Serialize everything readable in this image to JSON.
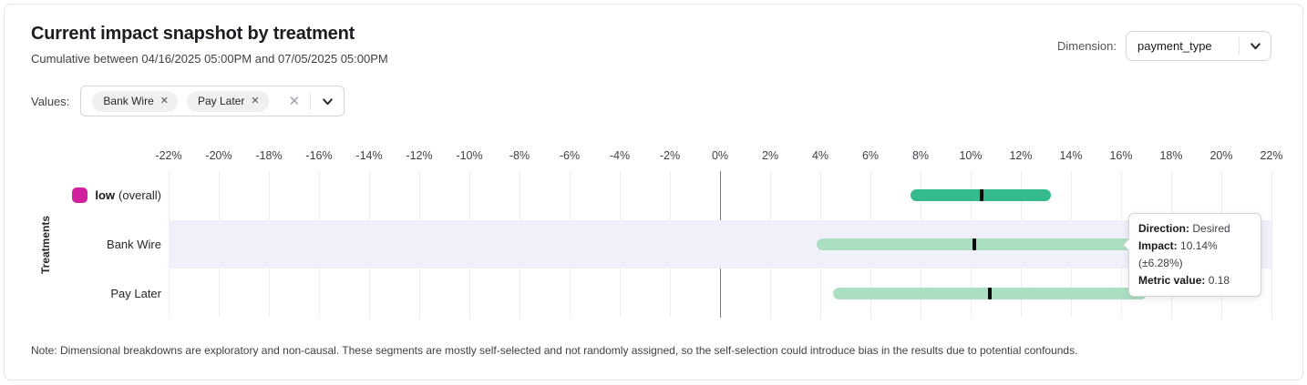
{
  "header": {
    "title": "Current impact snapshot by treatment",
    "subtitle": "Cumulative between 04/16/2025 05:00PM and 07/05/2025 05:00PM",
    "dimension_label": "Dimension:",
    "dimension_value": "payment_type"
  },
  "filters": {
    "values_label": "Values:",
    "chips": [
      {
        "label": "Bank Wire"
      },
      {
        "label": "Pay Later"
      }
    ]
  },
  "icons": {
    "chip_remove": "✕",
    "clear": "✕"
  },
  "chart_data": {
    "type": "bar",
    "orientation": "horizontal",
    "title": "",
    "y_axis_label": "Treatments",
    "x_unit": "%",
    "xlim": [
      -22,
      22
    ],
    "x_ticks": [
      -22,
      -20,
      -18,
      -16,
      -14,
      -12,
      -10,
      -8,
      -6,
      -4,
      -2,
      0,
      2,
      4,
      6,
      8,
      10,
      12,
      14,
      16,
      18,
      20,
      22
    ],
    "grid": true,
    "rows": [
      {
        "label": "low",
        "label_bold": true,
        "label_suffix": "(overall)",
        "legend_color": "#d2219e",
        "bar_color": "#34ba8c",
        "low": 7.6,
        "high": 13.2,
        "center": 10.45,
        "highlighted": false
      },
      {
        "label": "Bank Wire",
        "label_bold": false,
        "bar_color": "#abdfc2",
        "low": 3.86,
        "high": 16.42,
        "center": 10.14,
        "highlighted": true
      },
      {
        "label": "Pay Later",
        "label_bold": false,
        "bar_color": "#abdfc2",
        "low": 4.5,
        "high": 17.0,
        "center": 10.75,
        "highlighted": false
      }
    ]
  },
  "tooltip": {
    "rows": [
      {
        "label": "Direction:",
        "value": "Desired"
      },
      {
        "label": "Impact:",
        "value": "10.14% (±6.28%)"
      },
      {
        "label": "Metric value:",
        "value": "0.18"
      }
    ]
  },
  "note": "Note: Dimensional breakdowns are exploratory and non-causal. These segments are mostly self-selected and not randomly assigned, so the self-selection could introduce bias in the results due to potential confounds.",
  "colors": {
    "accent_green": "#34ba8c",
    "light_green": "#abdfc2",
    "magenta": "#d2219e",
    "row_highlight": "#f0f0fa",
    "zero_line": "#7c7c85",
    "gridline": "#ededf1"
  }
}
